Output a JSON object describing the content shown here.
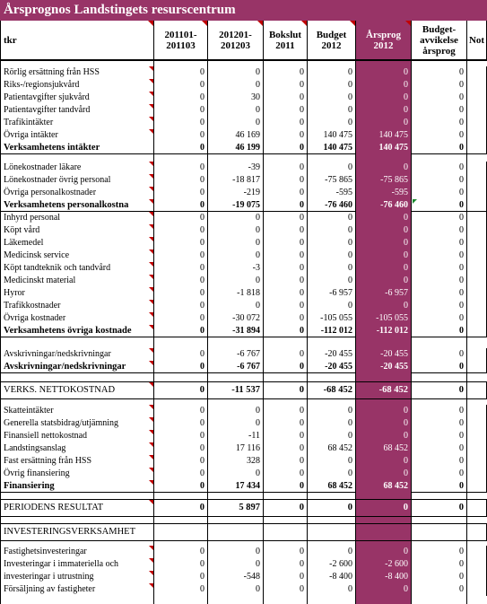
{
  "title": "Årsprognos Landstingets resurscentrum",
  "colors": {
    "accent": "#983467",
    "comment_marker": "#c00000",
    "error_marker": "#1b8a2e"
  },
  "columns": [
    "tkr",
    "201101-201103",
    "201201-201203",
    "Bokslut 2011",
    "Budget 2012",
    "Årsprog 2012",
    "Budget-avvikelse årsprog",
    "Not"
  ],
  "header": {
    "tkr": "tkr",
    "c1a": "201101-",
    "c1b": "201103",
    "c2a": "201201-",
    "c2b": "201203",
    "c3a": "Bokslut",
    "c3b": "2011",
    "c4a": "Budget",
    "c4b": "2012",
    "c5a": "Årsprog",
    "c5b": "2012",
    "c6a": "Budget-",
    "c6b": "avvikelse",
    "c6c": "årsprog",
    "c7a": "Not"
  },
  "rows": [
    {
      "label": "Rörlig ersättning från HSS",
      "v": [
        "0",
        "0",
        "0",
        "0",
        "0",
        "0"
      ]
    },
    {
      "label": "Riks-/regionsjukvård",
      "v": [
        "0",
        "0",
        "0",
        "0",
        "0",
        "0"
      ]
    },
    {
      "label": "Patientavgifter sjukvård",
      "v": [
        "0",
        "30",
        "0",
        "0",
        "0",
        "0"
      ]
    },
    {
      "label": "Patientavgifter tandvård",
      "v": [
        "0",
        "0",
        "0",
        "0",
        "0",
        "0"
      ]
    },
    {
      "label": "Trafikintäkter",
      "v": [
        "0",
        "0",
        "0",
        "0",
        "0",
        "0"
      ]
    },
    {
      "label": "Övriga intäkter",
      "v": [
        "0",
        "46 169",
        "0",
        "140 475",
        "140 475",
        "0"
      ]
    },
    {
      "label": "Verksamhetens intäkter",
      "v": [
        "0",
        "46 199",
        "0",
        "140 475",
        "140 475",
        "0"
      ]
    },
    {
      "label": "Lönekostnader läkare",
      "v": [
        "0",
        "-39",
        "0",
        "0",
        "0",
        "0"
      ]
    },
    {
      "label": "Lönekostnader övrig personal",
      "v": [
        "0",
        "-18 817",
        "0",
        "-75 865",
        "-75 865",
        "0"
      ]
    },
    {
      "label": "Övriga personalkostnader",
      "v": [
        "0",
        "-219",
        "0",
        "-595",
        "-595",
        "0"
      ]
    },
    {
      "label": "Verksamhetens personalkostna",
      "v": [
        "0",
        "-19 075",
        "0",
        "-76 460",
        "-76 460",
        "0"
      ]
    },
    {
      "label": "Inhyrd personal",
      "v": [
        "0",
        "0",
        "0",
        "0",
        "0",
        "0"
      ]
    },
    {
      "label": "Köpt vård",
      "v": [
        "0",
        "0",
        "0",
        "0",
        "0",
        "0"
      ]
    },
    {
      "label": "Läkemedel",
      "v": [
        "0",
        "0",
        "0",
        "0",
        "0",
        "0"
      ]
    },
    {
      "label": "Medicinsk service",
      "v": [
        "0",
        "0",
        "0",
        "0",
        "0",
        "0"
      ]
    },
    {
      "label": "Köpt tandteknik och tandvård",
      "v": [
        "0",
        "-3",
        "0",
        "0",
        "0",
        "0"
      ]
    },
    {
      "label": "Medicinskt material",
      "v": [
        "0",
        "0",
        "0",
        "0",
        "0",
        "0"
      ]
    },
    {
      "label": "Hyror",
      "v": [
        "0",
        "-1 818",
        "0",
        "-6 957",
        "-6 957",
        "0"
      ]
    },
    {
      "label": "Trafikkostnader",
      "v": [
        "0",
        "0",
        "0",
        "0",
        "0",
        "0"
      ]
    },
    {
      "label": "Övriga kostnader",
      "v": [
        "0",
        "-30 072",
        "0",
        "-105 055",
        "-105 055",
        "0"
      ]
    },
    {
      "label": "Verksamhetens övriga kostnade",
      "v": [
        "0",
        "-31 894",
        "0",
        "-112 012",
        "-112 012",
        "0"
      ]
    },
    {
      "label": "Avskrivningar/nedskrivningar",
      "v": [
        "0",
        "-6 767",
        "0",
        "-20 455",
        "-20 455",
        "0"
      ]
    },
    {
      "label": "Avskrivningar/nedskrivningar",
      "v": [
        "0",
        "-6 767",
        "0",
        "-20 455",
        "-20 455",
        "0"
      ]
    },
    {
      "label": "VERKS. NETTOKOSTNAD",
      "v": [
        "0",
        "-11 537",
        "0",
        "-68 452",
        "-68 452",
        "0"
      ]
    },
    {
      "label": "Skatteintäkter",
      "v": [
        "0",
        "0",
        "0",
        "0",
        "0",
        "0"
      ]
    },
    {
      "label": "Generella statsbidrag/utjämning",
      "v": [
        "0",
        "0",
        "0",
        "0",
        "0",
        "0"
      ]
    },
    {
      "label": "Finansiell nettokostnad",
      "v": [
        "0",
        "-11",
        "0",
        "0",
        "0",
        "0"
      ]
    },
    {
      "label": "Landstingsanslag",
      "v": [
        "0",
        "17 116",
        "0",
        "68 452",
        "68 452",
        "0"
      ]
    },
    {
      "label": "Fast ersättning från HSS",
      "v": [
        "0",
        "328",
        "0",
        "0",
        "0",
        "0"
      ]
    },
    {
      "label": "Övrig finansiering",
      "v": [
        "0",
        "0",
        "0",
        "0",
        "0",
        "0"
      ]
    },
    {
      "label": "Finansiering",
      "v": [
        "0",
        "17 434",
        "0",
        "68 452",
        "68 452",
        "0"
      ]
    },
    {
      "label": "PERIODENS RESULTAT",
      "v": [
        "0",
        "5 897",
        "0",
        "0",
        "0",
        "0"
      ]
    },
    {
      "label": "INVESTERINGSVERKSAMHET",
      "v": [
        "",
        "",
        "",
        "",
        "",
        ""
      ]
    },
    {
      "label": "Fastighetsinvesteringar",
      "v": [
        "0",
        "0",
        "0",
        "0",
        "0",
        "0"
      ]
    },
    {
      "label": "Investeringar i immateriella och",
      "v": [
        "0",
        "0",
        "0",
        "-2 600",
        "-2 600",
        "0"
      ]
    },
    {
      "label": "investeringar i utrustning",
      "v": [
        "0",
        "-548",
        "0",
        "-8 400",
        "-8 400",
        "0"
      ]
    },
    {
      "label": "Försäljning av fastigheter",
      "v": [
        "0",
        "0",
        "0",
        "0",
        "0",
        "0"
      ]
    }
  ]
}
